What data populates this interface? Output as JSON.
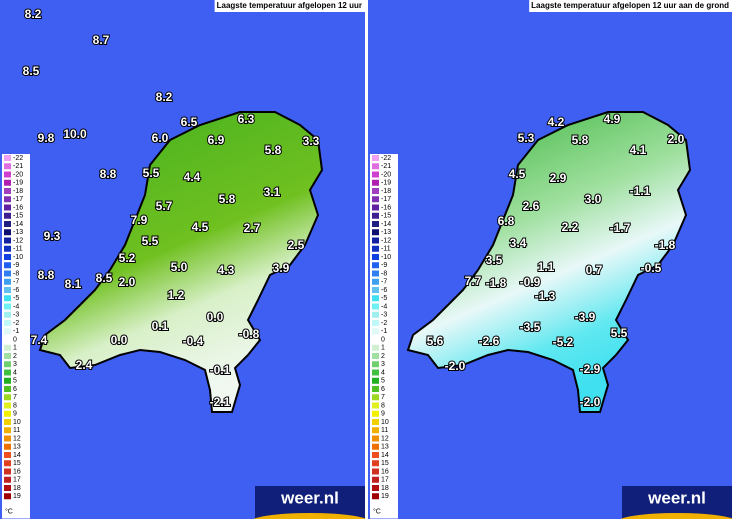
{
  "panels": [
    {
      "title": "Laagste temperatuur afgelopen 12 uur",
      "logo": "weer.nl",
      "labels": [
        "8.2",
        "8.7",
        "8.5",
        "8.2",
        "6.5",
        "6.3",
        "9.8",
        "10.0",
        "6.0",
        "6.9",
        "5.8",
        "3.3",
        "8.8",
        "5.5",
        "4.4",
        "3.1",
        "5.7",
        "5.8",
        "7.9",
        "4.5",
        "2.7",
        "9.3",
        "5.5",
        "2.5",
        "5.2",
        "5.0",
        "4.3",
        "3.9",
        "8.8",
        "8.1",
        "8.5",
        "2.0",
        "1.2",
        "0.0",
        "0.1",
        "-0.8",
        "7.4",
        "0.0",
        "-0.4",
        "2.4",
        "-0.1",
        "-2.1"
      ]
    },
    {
      "title": "Laagste temperatuur afgelopen 12 uur aan de grond",
      "logo": "weer.nl",
      "labels": [
        "4.2",
        "4.9",
        "5.3",
        "5.8",
        "4.1",
        "2.0",
        "4.5",
        "2.9",
        "-1.1",
        "2.6",
        "3.0",
        "6.8",
        "2.2",
        "-1.7",
        "-1.8",
        "3.4",
        "3.5",
        "1.1",
        "0.7",
        "-0.5",
        "7.7",
        "-1.8",
        "-0.9",
        "-1.3",
        "-3.9",
        "-3.5",
        "5.5",
        "5.6",
        "-2.6",
        "-5.2",
        "-2.0",
        "-2.9",
        "-2.0"
      ]
    }
  ],
  "legend": {
    "unit": "°C",
    "items": [
      {
        "label": "-22",
        "color": "#f0a0f0"
      },
      {
        "label": "-21",
        "color": "#e070e0"
      },
      {
        "label": "-20",
        "color": "#d040d0"
      },
      {
        "label": "-19",
        "color": "#b020b0"
      },
      {
        "label": "-18",
        "color": "#a040c0"
      },
      {
        "label": "-17",
        "color": "#8030b0"
      },
      {
        "label": "-16",
        "color": "#6020a0"
      },
      {
        "label": "-15",
        "color": "#402090"
      },
      {
        "label": "-14",
        "color": "#202080"
      },
      {
        "label": "-13",
        "color": "#101070"
      },
      {
        "label": "-12",
        "color": "#1020a0"
      },
      {
        "label": "-11",
        "color": "#1030c0"
      },
      {
        "label": "-10",
        "color": "#1040e0"
      },
      {
        "label": "-9",
        "color": "#2060f0"
      },
      {
        "label": "-8",
        "color": "#3080f0"
      },
      {
        "label": "-7",
        "color": "#40a0f0"
      },
      {
        "label": "-6",
        "color": "#60c0f0"
      },
      {
        "label": "-5",
        "color": "#40e0f0"
      },
      {
        "label": "-4",
        "color": "#70f0f0"
      },
      {
        "label": "-3",
        "color": "#a0f0f0"
      },
      {
        "label": "-2",
        "color": "#c0f8f8"
      },
      {
        "label": "-1",
        "color": "#e0f8f8"
      },
      {
        "label": "0",
        "color": "#ffffff"
      },
      {
        "label": "1",
        "color": "#d0f0d0"
      },
      {
        "label": "2",
        "color": "#a0e0a0"
      },
      {
        "label": "3",
        "color": "#70d070"
      },
      {
        "label": "4",
        "color": "#40c040"
      },
      {
        "label": "5",
        "color": "#20b020"
      },
      {
        "label": "6",
        "color": "#50c020"
      },
      {
        "label": "7",
        "color": "#a0d820"
      },
      {
        "label": "8",
        "color": "#e0f020"
      },
      {
        "label": "9",
        "color": "#f0f000"
      },
      {
        "label": "10",
        "color": "#f0d000"
      },
      {
        "label": "11",
        "color": "#f0b000"
      },
      {
        "label": "12",
        "color": "#f09000"
      },
      {
        "label": "13",
        "color": "#f07000"
      },
      {
        "label": "14",
        "color": "#f05020"
      },
      {
        "label": "15",
        "color": "#e04020"
      },
      {
        "label": "16",
        "color": "#d03020"
      },
      {
        "label": "17",
        "color": "#c02020"
      },
      {
        "label": "18",
        "color": "#b01010"
      },
      {
        "label": "19",
        "color": "#a00000"
      }
    ]
  }
}
